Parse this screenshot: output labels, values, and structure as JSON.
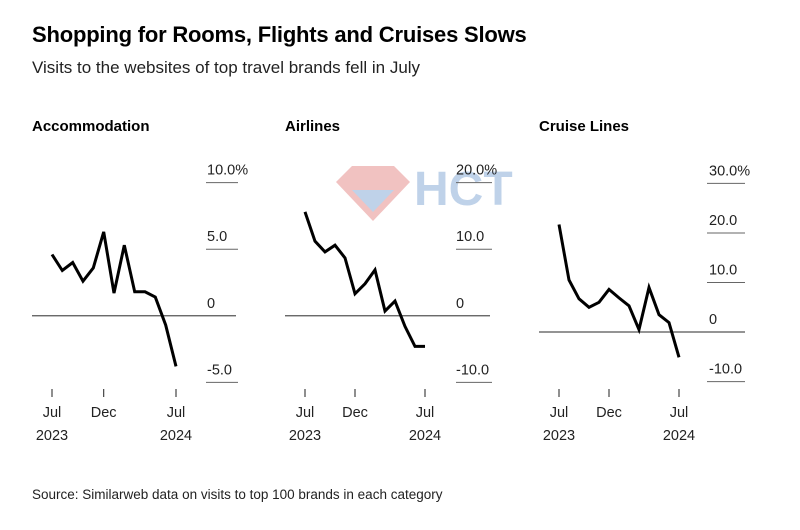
{
  "title": "Shopping for Rooms, Flights and Cruises Slows",
  "subtitle": "Visits to the websites of top travel brands fell in July",
  "source": "Source: Similarweb data on visits to top 100 brands in each category",
  "watermark": {
    "text": "HCT",
    "colors": {
      "red": "#d9534f",
      "blue": "#4a7fc1"
    }
  },
  "chart_data": [
    {
      "type": "line",
      "title": "Accommodation",
      "x_ticks": [
        {
          "label": "Jul",
          "sub": "2023",
          "index": 0
        },
        {
          "label": "Dec",
          "sub": "",
          "index": 5
        },
        {
          "label": "Jul",
          "sub": "2024",
          "index": 12
        }
      ],
      "y_ticks": [
        {
          "value": 10,
          "label": "10.0%"
        },
        {
          "value": 5,
          "label": "5.0"
        },
        {
          "value": 0,
          "label": "0"
        },
        {
          "value": -5,
          "label": "-5.0"
        }
      ],
      "ylim": [
        -5.5,
        10.5
      ],
      "series": [
        {
          "name": "Accommodation",
          "values": [
            4.6,
            3.4,
            4.0,
            2.6,
            3.6,
            6.3,
            1.7,
            5.3,
            1.8,
            1.8,
            1.4,
            -0.7,
            -3.8
          ]
        }
      ]
    },
    {
      "type": "line",
      "title": "Airlines",
      "x_ticks": [
        {
          "label": "Jul",
          "sub": "2023",
          "index": 0
        },
        {
          "label": "Dec",
          "sub": "",
          "index": 5
        },
        {
          "label": "Jul",
          "sub": "2024",
          "index": 12
        }
      ],
      "y_ticks": [
        {
          "value": 20,
          "label": "20.0%"
        },
        {
          "value": 10,
          "label": "10.0"
        },
        {
          "value": 0,
          "label": "0"
        },
        {
          "value": -10,
          "label": "-10.0"
        }
      ],
      "ylim": [
        -11,
        21
      ],
      "series": [
        {
          "name": "Airlines",
          "values": [
            15.6,
            11.2,
            9.6,
            10.6,
            8.7,
            3.3,
            4.8,
            6.9,
            0.7,
            2.2,
            -1.6,
            -4.6,
            -4.6
          ]
        }
      ]
    },
    {
      "type": "line",
      "title": "Cruise Lines",
      "x_ticks": [
        {
          "label": "Jul",
          "sub": "2023",
          "index": 0
        },
        {
          "label": "Dec",
          "sub": "",
          "index": 5
        },
        {
          "label": "Jul",
          "sub": "2024",
          "index": 12
        }
      ],
      "y_ticks": [
        {
          "value": 30,
          "label": "30.0%"
        },
        {
          "value": 20,
          "label": "20.0"
        },
        {
          "value": 10,
          "label": "10.0"
        },
        {
          "value": 0,
          "label": "0"
        },
        {
          "value": -10,
          "label": "-10.0"
        }
      ],
      "ylim": [
        -11.5,
        31.5
      ],
      "series": [
        {
          "name": "Cruise Lines",
          "values": [
            21.7,
            10.5,
            6.7,
            5.0,
            6.0,
            8.6,
            6.9,
            5.3,
            0.5,
            9.0,
            3.5,
            1.9,
            -5.1
          ]
        }
      ]
    }
  ]
}
